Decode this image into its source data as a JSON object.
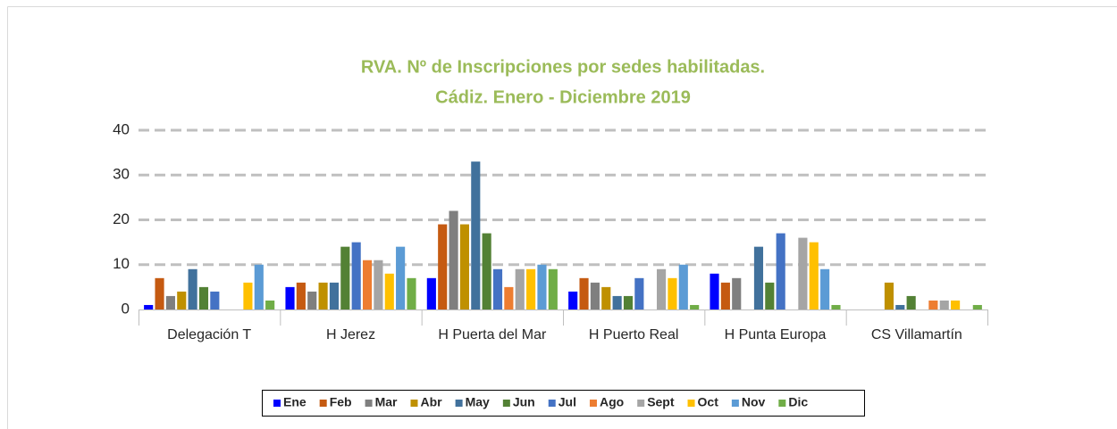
{
  "chart_data": {
    "type": "bar",
    "title": [
      "RVA. Nº de Inscripciones por sedes habilitadas.",
      "Cádiz. Enero - Diciembre 2019"
    ],
    "categories": [
      "Delegación T",
      "H Jerez",
      "H Puerta del Mar",
      "H Puerto Real",
      "H Punta Europa",
      "CS Villamartín"
    ],
    "series": [
      {
        "name": "Ene",
        "color": "#0000ff",
        "values": [
          1,
          5,
          7,
          4,
          8,
          0
        ]
      },
      {
        "name": "Feb",
        "color": "#c55a11",
        "values": [
          7,
          6,
          19,
          7,
          6,
          0
        ]
      },
      {
        "name": "Mar",
        "color": "#7f7f7f",
        "values": [
          3,
          4,
          22,
          6,
          7,
          0
        ]
      },
      {
        "name": "Abr",
        "color": "#bf9000",
        "values": [
          4,
          6,
          19,
          5,
          0,
          6
        ]
      },
      {
        "name": "May",
        "color": "#41719c",
        "values": [
          9,
          6,
          33,
          3,
          14,
          1
        ]
      },
      {
        "name": "Jun",
        "color": "#538135",
        "values": [
          5,
          14,
          17,
          3,
          6,
          3
        ]
      },
      {
        "name": "Jul",
        "color": "#4472c4",
        "values": [
          4,
          15,
          9,
          7,
          17,
          0
        ]
      },
      {
        "name": "Ago",
        "color": "#ed7d31",
        "values": [
          0,
          11,
          5,
          0,
          0,
          2
        ]
      },
      {
        "name": "Sept",
        "color": "#a5a5a5",
        "values": [
          0,
          11,
          9,
          9,
          16,
          2
        ]
      },
      {
        "name": "Oct",
        "color": "#ffc000",
        "values": [
          6,
          8,
          9,
          7,
          15,
          2
        ]
      },
      {
        "name": "Nov",
        "color": "#5b9bd5",
        "values": [
          10,
          14,
          10,
          10,
          9,
          0
        ]
      },
      {
        "name": "Dic",
        "color": "#70ad47",
        "values": [
          2,
          7,
          9,
          1,
          1,
          1
        ]
      }
    ],
    "ylim": [
      0,
      40
    ],
    "yticks": [
      0,
      10,
      20,
      30,
      40
    ],
    "grid": true,
    "legend": "bottom"
  }
}
